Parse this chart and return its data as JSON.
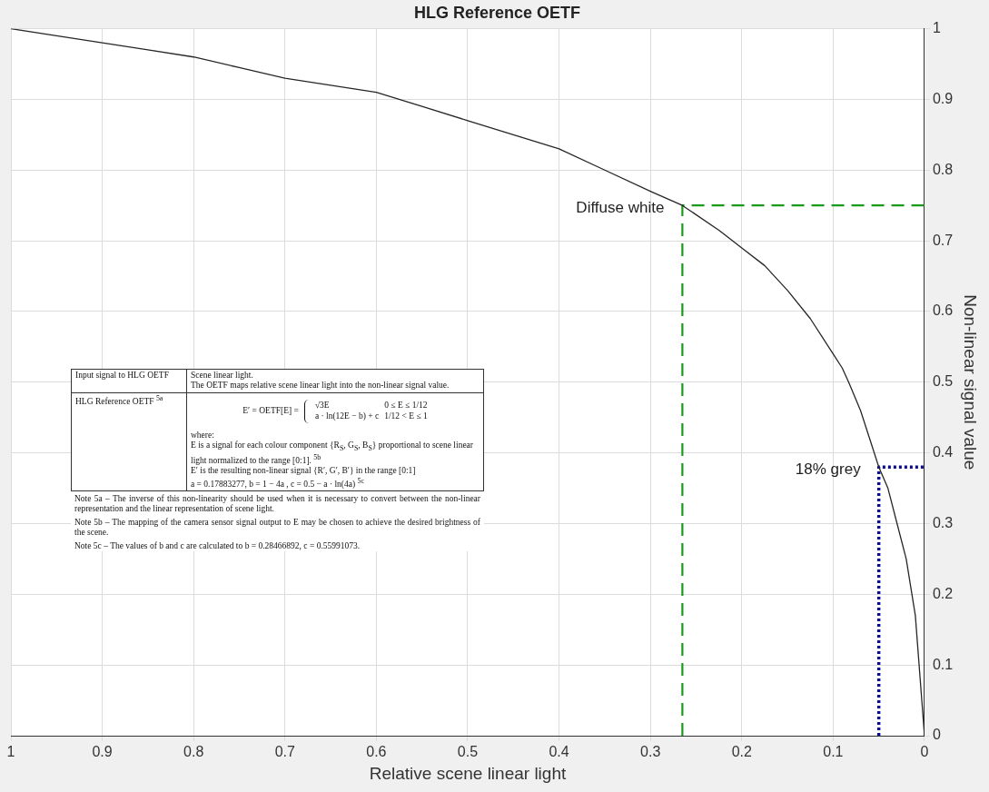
{
  "chart_data": {
    "type": "line",
    "title": "HLG Reference OETF",
    "xlabel": "Relative scene linear light",
    "ylabel": "Non-linear signal value",
    "xlim": [
      1,
      0
    ],
    "xticks": [
      1,
      0.9,
      0.8,
      0.7,
      0.6,
      0.5,
      0.4,
      0.3,
      0.2,
      0.1,
      0
    ],
    "ylim": [
      0,
      1
    ],
    "yticks": [
      0,
      0.1,
      0.2,
      0.3,
      0.4,
      0.5,
      0.6,
      0.7,
      0.8,
      0.9,
      1
    ],
    "grid": true,
    "legend": false,
    "marker": "none",
    "series": [
      {
        "color": "#262626",
        "line_style": "solid",
        "x": [
          1,
          0.95,
          0.9,
          0.85,
          0.8,
          0.75,
          0.7,
          0.65,
          0.6,
          0.55,
          0.5,
          0.45,
          0.4,
          0.35,
          0.3,
          0.265,
          0.225,
          0.2,
          0.175,
          0.15,
          0.125,
          0.1,
          0.09,
          0.083,
          0.07,
          0.06,
          0.05,
          0.04,
          0.03,
          0.02,
          0.01,
          0
        ],
        "values": [
          1,
          0.99,
          0.98,
          0.97,
          0.96,
          0.945,
          0.93,
          0.92,
          0.91,
          0.89,
          0.87,
          0.85,
          0.83,
          0.8,
          0.77,
          0.75,
          0.715,
          0.69,
          0.665,
          0.63,
          0.59,
          0.54,
          0.52,
          0.5,
          0.46,
          0.42,
          0.38,
          0.35,
          0.3,
          0.25,
          0.17,
          0
        ]
      },
      {
        "name": "Diffuse white",
        "color": "#1a9a1a",
        "line_style": "dashed",
        "x": [
          0.265,
          0.265,
          0
        ],
        "values": [
          0,
          0.75,
          0.75
        ]
      },
      {
        "name": "18% grey",
        "color": "#0a0a8c",
        "line_style": "dotted",
        "x": [
          0.05,
          0.05,
          0
        ],
        "values": [
          0,
          0.38,
          0.38
        ]
      }
    ],
    "annotations": [
      "Input signal to HLG OETF",
      "Scene linear light.",
      "The OETF maps relative scene linear light into the non-linear signal value.",
      "HLG Reference OETF $^{5a}$",
      "E′ = OETF[E] =",
      "√3E",
      "0 ≤ E ≤ 1/12",
      "a · ln(12E − b) + c",
      "1/12 < E ≤ 1",
      "where:",
      "E is a signal for each colour component {R$_{S}$, G$_{S}$, B$_{S}$} proportional to scene linear light normalized to the range [0:1]. $^{5b}$",
      "E′ is the resulting non-linear signal {R′, G′, B′} in the range [0:1]",
      "a = 0.17883277, b = 1 − 4a , c = 0.5 − a · ln(4a) $^{5c}$",
      "Note 5a – The inverse of this non-linearity should be used when it is necessary to convert between the non-linear representation and the linear representation of scene light.",
      "Note 5b – The mapping of the camera sensor signal output to E may be chosen to achieve the desired brightness of the scene.",
      "Note 5c – The values of b and c are calculated to b = 0.28466892, c = 0.55991073."
    ]
  }
}
